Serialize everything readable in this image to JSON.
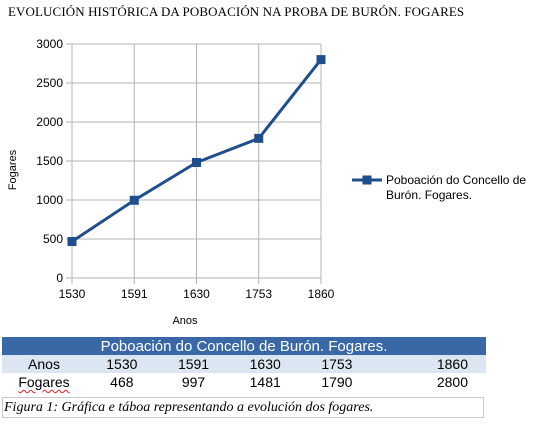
{
  "document": {
    "title": "EVOLUCIÓN HISTÓRICA DA POBOACIÓN NA PROBA DE BURÓN. FOGARES",
    "caption": "Figura 1: Gráfica e táboa representando a evolución dos fogares."
  },
  "chart_data": {
    "type": "line",
    "categories": [
      "1530",
      "1591",
      "1630",
      "1753",
      "1860"
    ],
    "series": [
      {
        "name": "Poboación do Concello de Burón. Fogares.",
        "values": [
          468,
          997,
          1481,
          1790,
          2800
        ],
        "color": "#1f4e8c"
      }
    ],
    "title": "",
    "xlabel": "Anos",
    "ylabel": "Fogares",
    "ylim": [
      0,
      3000
    ],
    "yticks": [
      0,
      500,
      1000,
      1500,
      2000,
      2500,
      3000
    ],
    "grid": true,
    "legend": "right",
    "marker": "square",
    "grid_color": "#b3b3b3"
  },
  "table": {
    "title": "Poboación do Concello de Burón. Fogares.",
    "rows": [
      {
        "header": "Anos",
        "values": [
          "1530",
          "1591",
          "1630",
          "1753",
          "1860"
        ]
      },
      {
        "header": "Fogares",
        "values": [
          "468",
          "997",
          "1481",
          "1790",
          "2800"
        ]
      }
    ],
    "colors": {
      "title_bg": "#3a67a6",
      "alt_row_bg": "#dce6f2"
    }
  }
}
